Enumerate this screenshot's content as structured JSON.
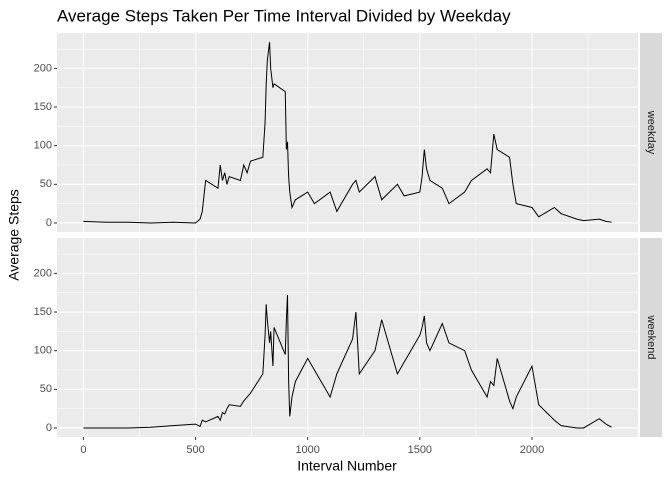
{
  "chart_data": {
    "type": "line",
    "facet": true,
    "title": "Average Steps Taken Per Time Interval Divided by Weekday",
    "x_label": "Interval Number",
    "y_label": "Average Steps",
    "x": [
      0,
      100,
      200,
      300,
      400,
      500,
      520,
      530,
      545,
      600,
      610,
      620,
      630,
      640,
      650,
      700,
      715,
      730,
      745,
      800,
      810,
      815,
      820,
      830,
      835,
      845,
      850,
      900,
      905,
      910,
      915,
      920,
      930,
      945,
      1000,
      1030,
      1100,
      1130,
      1200,
      1215,
      1230,
      1300,
      1330,
      1400,
      1430,
      1500,
      1510,
      1520,
      1530,
      1545,
      1600,
      1630,
      1700,
      1730,
      1800,
      1815,
      1830,
      1845,
      1900,
      1915,
      1930,
      2000,
      2030,
      2100,
      2130,
      2200,
      2230,
      2300,
      2330,
      2355
    ],
    "series": [
      {
        "name": "weekday",
        "color": "#000000",
        "values": [
          2,
          1,
          1,
          0,
          1,
          0,
          5,
          15,
          55,
          45,
          75,
          55,
          65,
          50,
          60,
          55,
          75,
          65,
          80,
          85,
          130,
          180,
          210,
          234,
          200,
          175,
          180,
          170,
          95,
          105,
          60,
          40,
          20,
          30,
          40,
          25,
          40,
          15,
          50,
          55,
          40,
          60,
          30,
          50,
          35,
          40,
          60,
          95,
          70,
          55,
          45,
          25,
          40,
          55,
          70,
          65,
          115,
          95,
          85,
          50,
          25,
          20,
          8,
          20,
          12,
          5,
          3,
          5,
          2,
          1
        ]
      },
      {
        "name": "weekend",
        "color": "#000000",
        "values": [
          0,
          0,
          0,
          1,
          3,
          5,
          2,
          10,
          8,
          15,
          10,
          20,
          18,
          25,
          30,
          28,
          35,
          40,
          45,
          70,
          120,
          160,
          140,
          110,
          125,
          80,
          130,
          95,
          140,
          172,
          60,
          15,
          40,
          60,
          90,
          75,
          40,
          70,
          115,
          150,
          70,
          100,
          140,
          70,
          85,
          120,
          130,
          145,
          110,
          100,
          135,
          110,
          100,
          75,
          40,
          60,
          55,
          90,
          35,
          25,
          40,
          80,
          30,
          10,
          3,
          0,
          0,
          12,
          5,
          1
        ]
      }
    ],
    "xlim": [
      -117.75,
      2472.75
    ],
    "xticks": [
      0,
      500,
      1000,
      1500,
      2000
    ],
    "ylim": [
      -11.7,
      245.8
    ],
    "yticks": [
      0,
      50,
      100,
      150,
      200
    ],
    "grid": true
  }
}
